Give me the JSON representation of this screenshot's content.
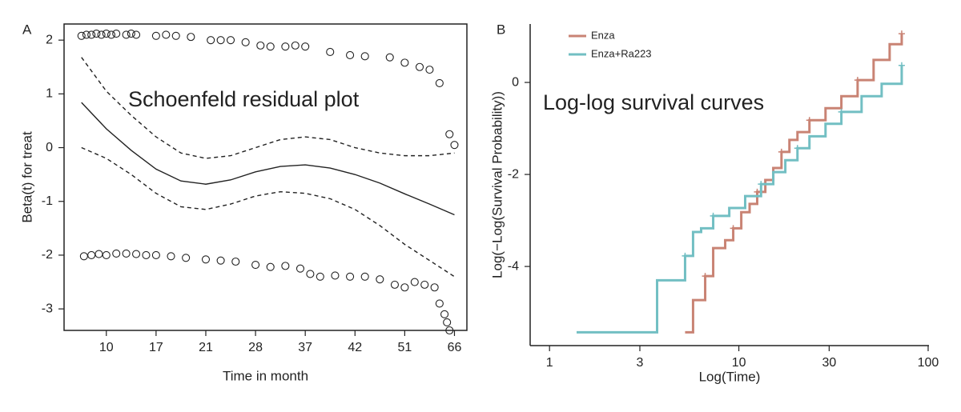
{
  "chart_data": [
    {
      "type": "scatter",
      "panel_label": "A",
      "annotation": "Schoenfeld residual plot",
      "xlabel": "Time in month",
      "ylabel": "Beta(t) for treat",
      "frame": true,
      "xlim": [
        0.15,
        8.25
      ],
      "ylim": [
        -3.4,
        2.3
      ],
      "xticks": [
        {
          "value": 1,
          "label": "10"
        },
        {
          "value": 2,
          "label": "17"
        },
        {
          "value": 3,
          "label": "21"
        },
        {
          "value": 4,
          "label": "28"
        },
        {
          "value": 5,
          "label": "37"
        },
        {
          "value": 6,
          "label": "42"
        },
        {
          "value": 7,
          "label": "51"
        },
        {
          "value": 8,
          "label": "66"
        }
      ],
      "yticks": [
        2,
        1,
        0,
        -1,
        -2,
        -3
      ],
      "series": [
        {
          "style": "points",
          "color": "#222222",
          "x": [
            0.5,
            0.6,
            0.7,
            0.8,
            0.9,
            1.0,
            1.1,
            1.2,
            1.4,
            1.5,
            1.6,
            2.0,
            2.2,
            2.4,
            2.7,
            3.1,
            3.3,
            3.5,
            3.8,
            4.1,
            4.3,
            4.6,
            4.8,
            5.0,
            5.5,
            5.9,
            6.2,
            6.7,
            7.0,
            7.3,
            7.5,
            7.7,
            7.9,
            8.0
          ],
          "values": [
            2.08,
            2.1,
            2.1,
            2.12,
            2.1,
            2.12,
            2.1,
            2.12,
            2.1,
            2.12,
            2.1,
            2.08,
            2.1,
            2.08,
            2.06,
            2.0,
            2.0,
            2.0,
            1.96,
            1.9,
            1.88,
            1.88,
            1.9,
            1.88,
            1.78,
            1.72,
            1.7,
            1.68,
            1.58,
            1.5,
            1.45,
            1.2,
            0.25,
            0.05
          ]
        },
        {
          "style": "points",
          "color": "#222222",
          "x": [
            0.55,
            0.7,
            0.85,
            1.0,
            1.2,
            1.4,
            1.6,
            1.8,
            2.0,
            2.3,
            2.6,
            3.0,
            3.3,
            3.6,
            4.0,
            4.3,
            4.6,
            4.9,
            5.1,
            5.3,
            5.6,
            5.9,
            6.2,
            6.5,
            6.8,
            7.0,
            7.2,
            7.4,
            7.6,
            7.7,
            7.8,
            7.85,
            7.9
          ],
          "values": [
            -2.02,
            -2.0,
            -1.98,
            -2.0,
            -1.97,
            -1.97,
            -1.98,
            -2.0,
            -2.0,
            -2.02,
            -2.05,
            -2.08,
            -2.1,
            -2.12,
            -2.18,
            -2.22,
            -2.2,
            -2.25,
            -2.35,
            -2.4,
            -2.38,
            -2.4,
            -2.4,
            -2.45,
            -2.55,
            -2.6,
            -2.5,
            -2.55,
            -2.6,
            -2.9,
            -3.1,
            -3.25,
            -3.4
          ]
        },
        {
          "style": "solid",
          "color": "#222222",
          "x": [
            0.5,
            1.0,
            1.5,
            2.0,
            2.5,
            3.0,
            3.5,
            4.0,
            4.5,
            5.0,
            5.5,
            6.0,
            6.5,
            7.0,
            7.5,
            8.0
          ],
          "values": [
            0.84,
            0.35,
            -0.05,
            -0.4,
            -0.62,
            -0.68,
            -0.6,
            -0.45,
            -0.35,
            -0.32,
            -0.38,
            -0.5,
            -0.66,
            -0.86,
            -1.05,
            -1.25
          ]
        },
        {
          "style": "dashed",
          "color": "#222222",
          "x": [
            0.5,
            1.0,
            1.5,
            2.0,
            2.5,
            3.0,
            3.5,
            4.0,
            4.5,
            5.0,
            5.5,
            6.0,
            6.5,
            7.0,
            7.5,
            8.0
          ],
          "values": [
            1.68,
            1.05,
            0.6,
            0.2,
            -0.1,
            -0.2,
            -0.15,
            0.0,
            0.15,
            0.2,
            0.15,
            0.0,
            -0.1,
            -0.15,
            -0.15,
            -0.1
          ]
        },
        {
          "style": "dashed",
          "color": "#222222",
          "x": [
            0.5,
            1.0,
            1.5,
            2.0,
            2.5,
            3.0,
            3.5,
            4.0,
            4.5,
            5.0,
            5.5,
            6.0,
            6.5,
            7.0,
            7.5,
            8.0
          ],
          "values": [
            0.0,
            -0.2,
            -0.5,
            -0.85,
            -1.1,
            -1.15,
            -1.05,
            -0.9,
            -0.82,
            -0.85,
            -0.95,
            -1.15,
            -1.45,
            -1.8,
            -2.1,
            -2.4
          ]
        }
      ]
    },
    {
      "type": "line",
      "panel_label": "B",
      "annotation": "Log-log survival curves",
      "xlabel": "Log(Time)",
      "ylabel": "Log(−Log(Survival Probability))",
      "frame": false,
      "log_x": true,
      "step": true,
      "legend": "top-left",
      "xlim": [
        0.79,
        101
      ],
      "ylim": [
        -5.72,
        1.27
      ],
      "xticks": [
        1,
        3,
        10,
        30,
        100
      ],
      "yticks": [
        0,
        -2,
        -4
      ],
      "series": [
        {
          "name": "Enza",
          "color": "#c98374",
          "x": [
            5.2,
            5.73,
            6.64,
            7.32,
            8.47,
            9.34,
            10.3,
            11.4,
            12.5,
            13.8,
            15.2,
            16.8,
            18.5,
            20.4,
            23.6,
            28.7,
            34.8,
            42.4,
            51.5,
            62.6,
            72.5
          ],
          "values": [
            -5.43,
            -4.73,
            -4.21,
            -3.6,
            -3.43,
            -3.17,
            -2.82,
            -2.64,
            -2.38,
            -2.12,
            -1.86,
            -1.51,
            -1.25,
            -1.08,
            -0.82,
            -0.56,
            -0.3,
            0.05,
            0.49,
            0.83,
            1.06
          ]
        },
        {
          "name": "Enza+Ra223",
          "color": "#72bfc3",
          "x": [
            1.39,
            3.7,
            5.2,
            5.73,
            6.32,
            7.32,
            8.9,
            10.8,
            13.1,
            15.2,
            17.6,
            20.4,
            23.6,
            28.7,
            34.8,
            44.5,
            56.8,
            72.5
          ],
          "values": [
            -5.43,
            -4.3,
            -3.77,
            -3.25,
            -3.17,
            -2.9,
            -2.73,
            -2.47,
            -2.21,
            -1.95,
            -1.69,
            -1.43,
            -1.17,
            -0.9,
            -0.64,
            -0.3,
            -0.03,
            0.37
          ]
        }
      ]
    }
  ]
}
